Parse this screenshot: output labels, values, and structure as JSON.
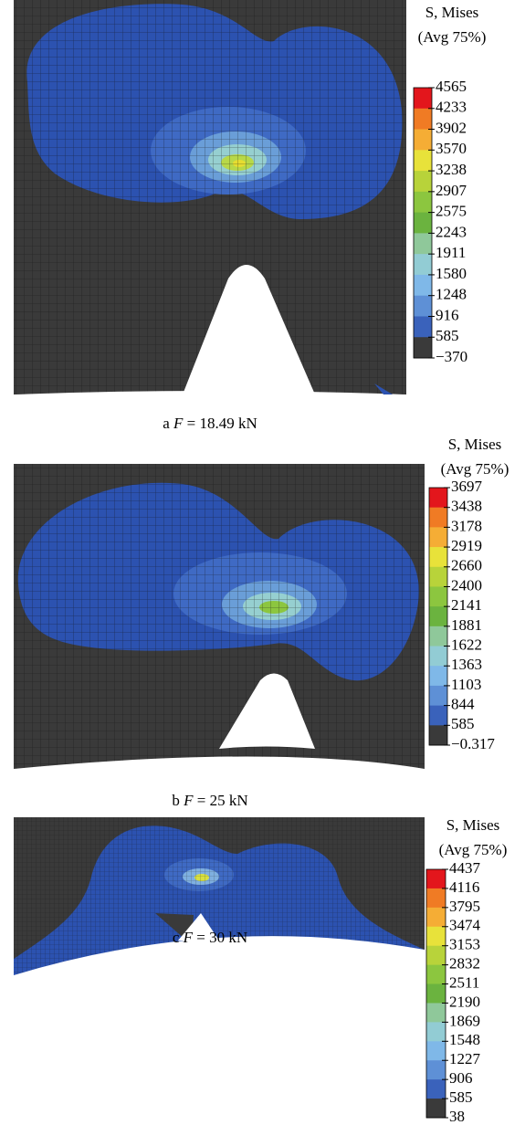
{
  "panels": [
    {
      "label": "a",
      "variable": "F",
      "value": "= 18.49 kN",
      "legend": {
        "title": "S, Mises",
        "subtitle": "(Avg 75%)",
        "labels": [
          "4565",
          "4233",
          "3902",
          "3570",
          "3238",
          "2907",
          "2575",
          "2243",
          "1911",
          "1580",
          "1248",
          "916",
          "585",
          "−370"
        ]
      }
    },
    {
      "label": "b",
      "variable": "F",
      "value": "= 25 kN",
      "legend": {
        "title": "S, Mises",
        "subtitle": "(Avg 75%)",
        "labels": [
          "3697",
          "3438",
          "3178",
          "2919",
          "2660",
          "2400",
          "2141",
          "1881",
          "1622",
          "1363",
          "1103",
          "844",
          "585",
          "−0.317"
        ]
      }
    },
    {
      "label": "c",
      "variable": "F",
      "value": "= 30 kN",
      "legend": {
        "title": "S, Mises",
        "subtitle": "(Avg 75%)",
        "labels": [
          "4437",
          "4116",
          "3795",
          "3474",
          "3153",
          "2832",
          "2511",
          "2190",
          "1869",
          "1548",
          "1227",
          "906",
          "585",
          "38"
        ]
      }
    }
  ]
}
